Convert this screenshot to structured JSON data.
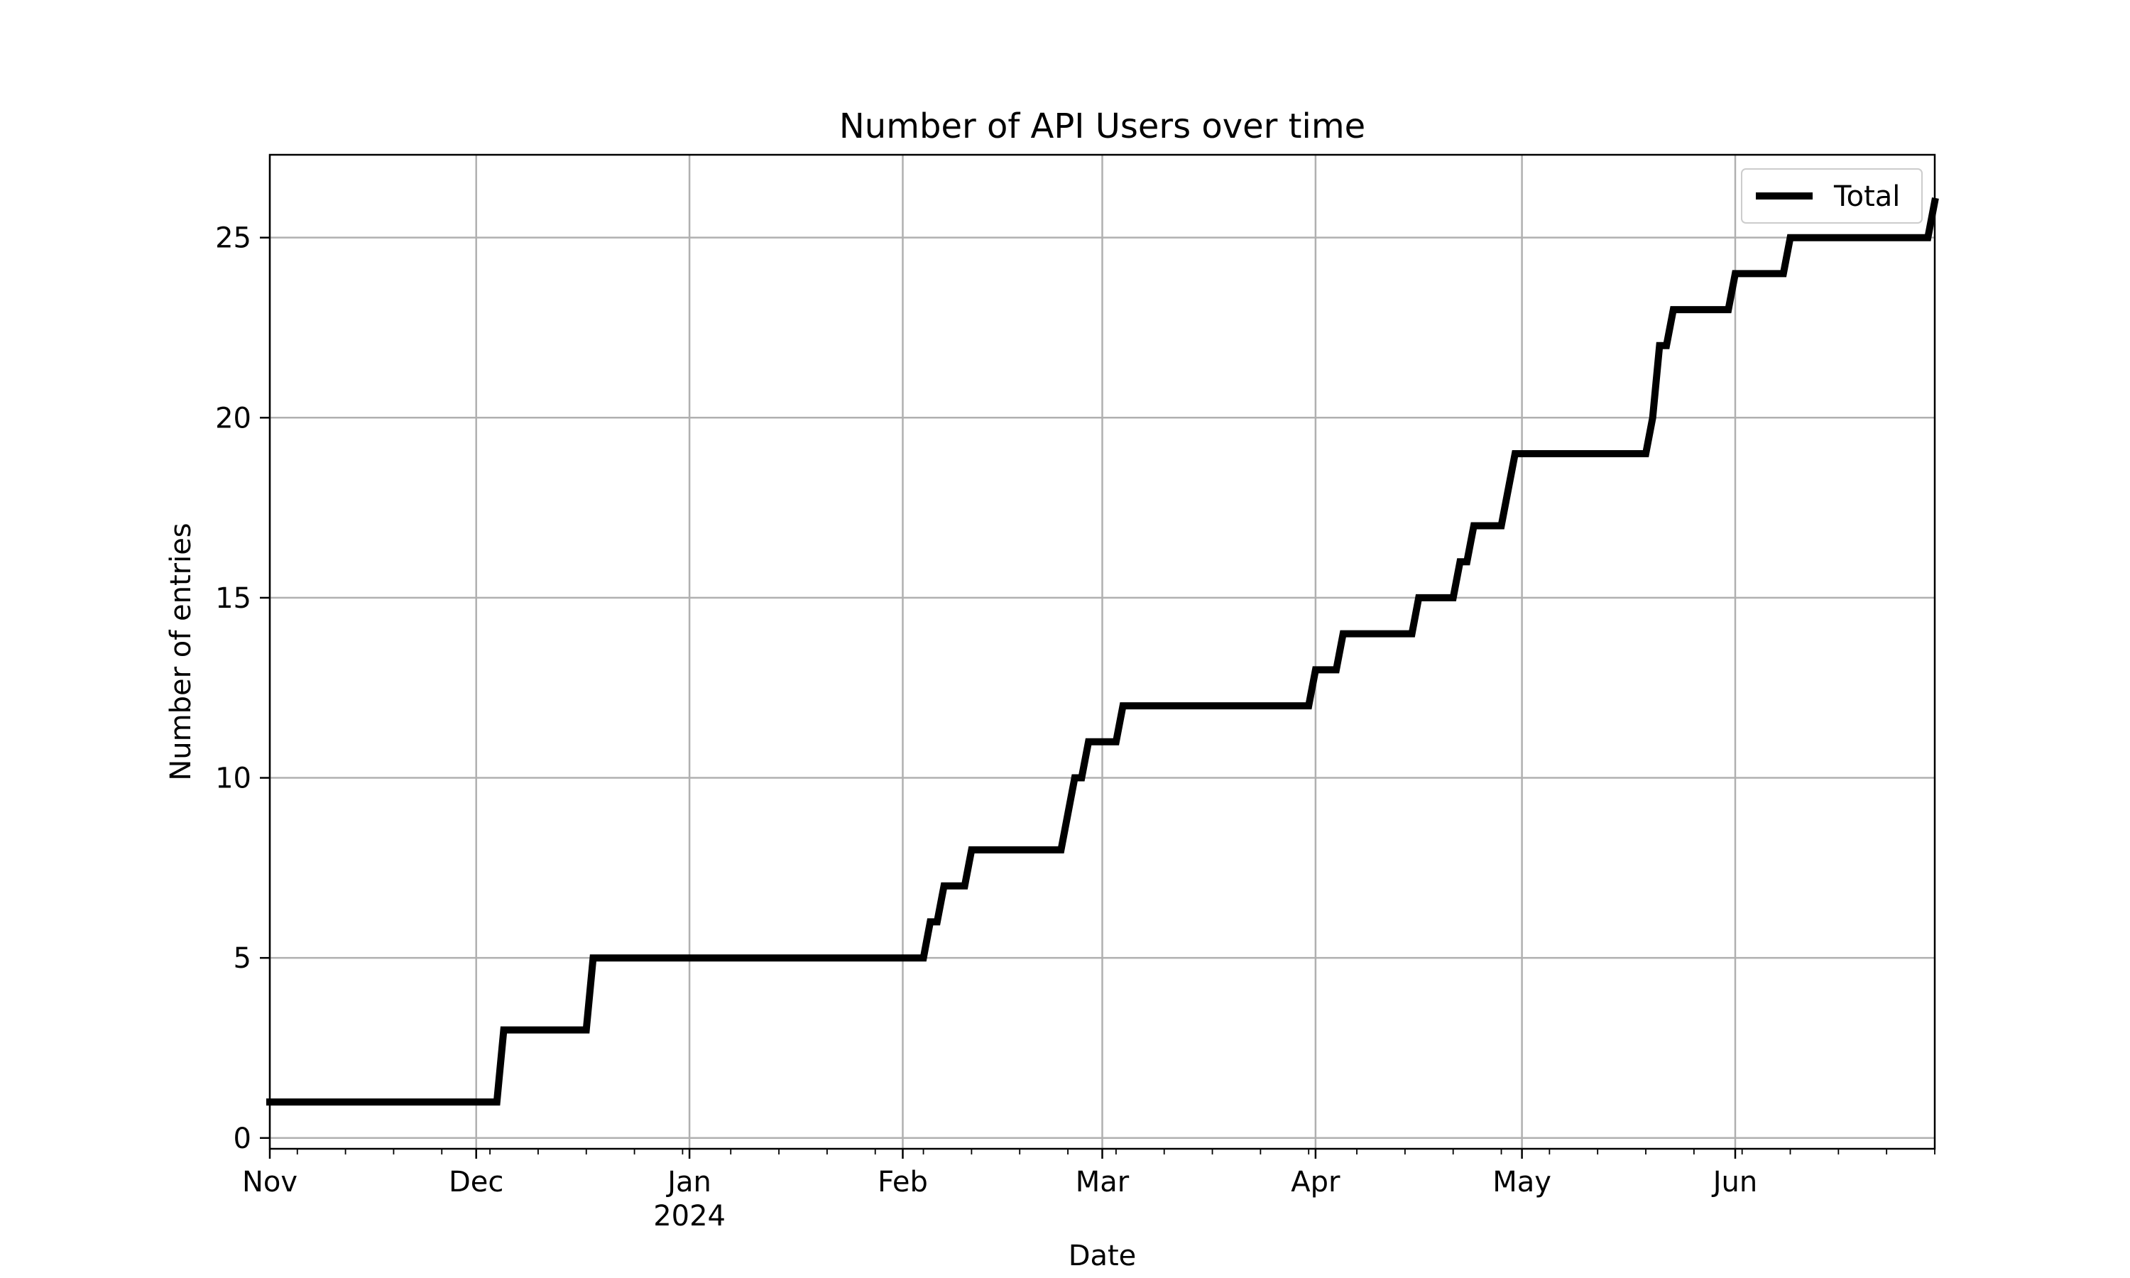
{
  "chart_data": {
    "type": "line",
    "title": "Number of API Users over time",
    "xlabel": "Date",
    "ylabel": "Number of entries",
    "xlim": [
      "2023-11-01",
      "2024-06-30"
    ],
    "ylim": [
      -0.3,
      27.3
    ],
    "grid": true,
    "legend_position": "top-right",
    "colors": {
      "line": "#000000",
      "grid": "#b0b0b0"
    },
    "x_ticks": [
      {
        "date": "2023-11-01",
        "label": "Nov",
        "sublabel": ""
      },
      {
        "date": "2023-12-01",
        "label": "Dec",
        "sublabel": ""
      },
      {
        "date": "2024-01-01",
        "label": "Jan",
        "sublabel": "2024"
      },
      {
        "date": "2024-02-01",
        "label": "Feb",
        "sublabel": ""
      },
      {
        "date": "2024-03-01",
        "label": "Mar",
        "sublabel": ""
      },
      {
        "date": "2024-04-01",
        "label": "Apr",
        "sublabel": ""
      },
      {
        "date": "2024-05-01",
        "label": "May",
        "sublabel": ""
      },
      {
        "date": "2024-06-01",
        "label": "Jun",
        "sublabel": ""
      }
    ],
    "y_ticks": [
      {
        "value": 0,
        "label": "0"
      },
      {
        "value": 5,
        "label": "5"
      },
      {
        "value": 10,
        "label": "10"
      },
      {
        "value": 15,
        "label": "15"
      },
      {
        "value": 20,
        "label": "20"
      },
      {
        "value": 25,
        "label": "25"
      }
    ],
    "series": [
      {
        "name": "Total",
        "points": [
          [
            "2023-11-01",
            1
          ],
          [
            "2023-12-04",
            1
          ],
          [
            "2023-12-05",
            3
          ],
          [
            "2023-12-17",
            3
          ],
          [
            "2023-12-18",
            5
          ],
          [
            "2024-02-04",
            5
          ],
          [
            "2024-02-05",
            6
          ],
          [
            "2024-02-06",
            6
          ],
          [
            "2024-02-07",
            7
          ],
          [
            "2024-02-10",
            7
          ],
          [
            "2024-02-11",
            8
          ],
          [
            "2024-02-24",
            8
          ],
          [
            "2024-02-26",
            10
          ],
          [
            "2024-02-27",
            10
          ],
          [
            "2024-02-28",
            11
          ],
          [
            "2024-03-03",
            11
          ],
          [
            "2024-03-04",
            12
          ],
          [
            "2024-03-31",
            12
          ],
          [
            "2024-04-01",
            13
          ],
          [
            "2024-04-04",
            13
          ],
          [
            "2024-04-05",
            14
          ],
          [
            "2024-04-15",
            14
          ],
          [
            "2024-04-16",
            15
          ],
          [
            "2024-04-21",
            15
          ],
          [
            "2024-04-22",
            16
          ],
          [
            "2024-04-23",
            16
          ],
          [
            "2024-04-24",
            17
          ],
          [
            "2024-04-28",
            17
          ],
          [
            "2024-04-30",
            19
          ],
          [
            "2024-05-19",
            19
          ],
          [
            "2024-05-20",
            20
          ],
          [
            "2024-05-21",
            22
          ],
          [
            "2024-05-22",
            22
          ],
          [
            "2024-05-23",
            23
          ],
          [
            "2024-05-31",
            23
          ],
          [
            "2024-06-01",
            24
          ],
          [
            "2024-06-08",
            24
          ],
          [
            "2024-06-09",
            25
          ],
          [
            "2024-06-29",
            25
          ],
          [
            "2024-06-30",
            26
          ]
        ]
      }
    ]
  }
}
